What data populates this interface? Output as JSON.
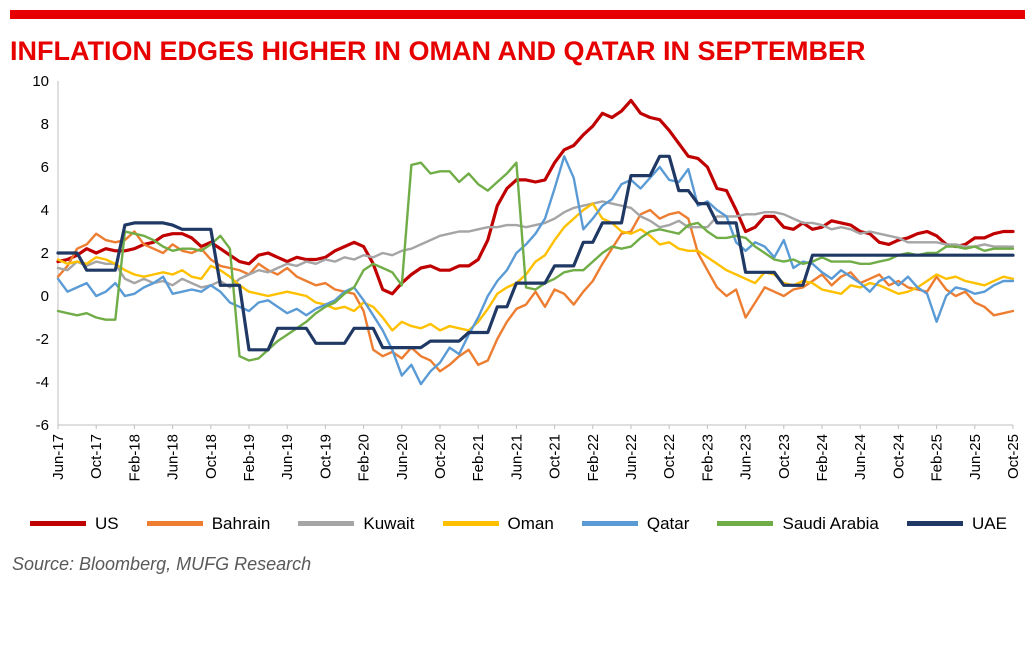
{
  "title": "INFLATION EDGES HIGHER IN OMAN AND QATAR IN SEPTEMBER",
  "source": "Source: Bloomberg, MUFG Research",
  "colors": {
    "accent_red": "#e60000",
    "axis": "#bfbfbf",
    "tick_text": "#000000",
    "source_text": "#595959"
  },
  "chart_data": {
    "type": "line",
    "title": "INFLATION EDGES HIGHER IN OMAN AND QATAR IN SEPTEMBER",
    "ylim": [
      -6,
      10
    ],
    "y_ticks": [
      10,
      8,
      6,
      4,
      2,
      0,
      -2,
      -4,
      -6
    ],
    "grid": false,
    "legend_position": "bottom",
    "tick_every": 4,
    "x_tick_labels": [
      "Jun-17",
      "Oct-17",
      "Feb-18",
      "Jun-18",
      "Oct-18",
      "Feb-19",
      "Jun-19",
      "Oct-19",
      "Feb-20",
      "Jun-20",
      "Oct-20",
      "Feb-21",
      "Jun-21",
      "Oct-21",
      "Feb-22",
      "Jun-22",
      "Oct-22",
      "Feb-23",
      "Jun-23",
      "Oct-23",
      "Feb-24",
      "Jun-24",
      "Oct-24",
      "Feb-25",
      "Jun-25",
      "Oct-25"
    ],
    "series": [
      {
        "name": "US",
        "color": "#c00000",
        "width": 3.2,
        "values": [
          1.6,
          1.7,
          1.9,
          2.2,
          2.0,
          2.2,
          2.1,
          2.1,
          2.2,
          2.4,
          2.5,
          2.8,
          2.9,
          2.9,
          2.7,
          2.3,
          2.5,
          2.2,
          1.9,
          1.6,
          1.5,
          1.9,
          2.0,
          1.8,
          1.6,
          1.8,
          1.7,
          1.7,
          1.8,
          2.1,
          2.3,
          2.5,
          2.3,
          1.5,
          0.3,
          0.1,
          0.6,
          1.0,
          1.3,
          1.4,
          1.2,
          1.2,
          1.4,
          1.4,
          1.7,
          2.6,
          4.2,
          5.0,
          5.4,
          5.4,
          5.3,
          5.4,
          6.2,
          6.8,
          7.0,
          7.5,
          7.9,
          8.5,
          8.3,
          8.6,
          9.1,
          8.5,
          8.3,
          8.2,
          7.7,
          7.1,
          6.5,
          6.4,
          6.0,
          5.0,
          4.9,
          4.0,
          3.0,
          3.2,
          3.7,
          3.7,
          3.2,
          3.1,
          3.4,
          3.1,
          3.2,
          3.5,
          3.4,
          3.3,
          3.0,
          2.9,
          2.5,
          2.4,
          2.6,
          2.7,
          2.9,
          3.0,
          2.8,
          2.4,
          2.3,
          2.4,
          2.7,
          2.7,
          2.9,
          3.0,
          3.0
        ]
      },
      {
        "name": "Bahrain",
        "color": "#ed7d31",
        "width": 2.4,
        "values": [
          0.9,
          1.4,
          2.2,
          2.4,
          2.9,
          2.6,
          2.5,
          2.6,
          3.0,
          2.4,
          2.2,
          2.0,
          2.4,
          2.1,
          2.0,
          2.2,
          1.7,
          1.4,
          1.3,
          1.2,
          1.0,
          1.5,
          1.2,
          1.0,
          1.3,
          0.9,
          0.7,
          0.5,
          0.6,
          0.3,
          0.2,
          0.1,
          -0.7,
          -2.5,
          -2.8,
          -2.6,
          -2.9,
          -2.4,
          -2.8,
          -3.0,
          -3.5,
          -3.2,
          -2.8,
          -2.5,
          -3.2,
          -3.0,
          -2.0,
          -1.2,
          -0.6,
          -0.4,
          0.2,
          -0.5,
          0.3,
          0.1,
          -0.4,
          0.2,
          0.7,
          1.5,
          2.2,
          2.9,
          3.0,
          3.8,
          4.0,
          3.6,
          3.8,
          3.9,
          3.6,
          2.0,
          1.2,
          0.4,
          0.0,
          0.3,
          -1.0,
          -0.3,
          0.4,
          0.2,
          0.0,
          0.3,
          0.4,
          0.7,
          1.0,
          0.5,
          0.9,
          1.1,
          0.6,
          0.8,
          1.0,
          0.5,
          0.7,
          0.4,
          0.3,
          0.2,
          0.9,
          0.3,
          0.0,
          0.2,
          -0.3,
          -0.5,
          -0.9,
          -0.8,
          -0.7
        ]
      },
      {
        "name": "Kuwait",
        "color": "#a5a5a5",
        "width": 2.4,
        "values": [
          1.3,
          1.2,
          1.6,
          1.4,
          1.6,
          1.5,
          1.5,
          0.8,
          0.6,
          0.8,
          0.6,
          0.7,
          0.5,
          0.8,
          0.6,
          0.4,
          0.5,
          0.7,
          0.4,
          0.8,
          1.0,
          1.2,
          1.1,
          1.3,
          1.5,
          1.4,
          1.6,
          1.5,
          1.7,
          1.6,
          1.8,
          1.7,
          1.9,
          1.8,
          2.0,
          1.9,
          2.1,
          2.2,
          2.4,
          2.6,
          2.8,
          2.9,
          3.0,
          3.0,
          3.1,
          3.2,
          3.2,
          3.3,
          3.3,
          3.2,
          3.3,
          3.4,
          3.6,
          3.9,
          4.1,
          4.2,
          4.3,
          4.4,
          4.3,
          4.2,
          4.1,
          3.7,
          3.5,
          3.2,
          3.3,
          3.5,
          3.2,
          3.2,
          3.2,
          3.7,
          3.7,
          3.7,
          3.8,
          3.8,
          3.9,
          3.9,
          3.8,
          3.6,
          3.4,
          3.4,
          3.3,
          3.1,
          3.2,
          3.1,
          2.9,
          3.0,
          2.9,
          2.8,
          2.7,
          2.5,
          2.5,
          2.5,
          2.5,
          2.4,
          2.4,
          2.3,
          2.3,
          2.4,
          2.3,
          2.3,
          2.3
        ]
      },
      {
        "name": "Oman",
        "color": "#ffc000",
        "width": 2.4,
        "values": [
          1.7,
          1.5,
          1.6,
          1.5,
          1.8,
          1.7,
          1.5,
          1.2,
          1.0,
          0.9,
          1.0,
          1.1,
          1.0,
          1.2,
          0.9,
          0.8,
          1.4,
          1.2,
          0.9,
          0.5,
          0.2,
          0.1,
          0.0,
          0.1,
          0.2,
          0.1,
          0.0,
          -0.3,
          -0.4,
          -0.6,
          -0.5,
          -0.7,
          -0.3,
          -0.5,
          -1.0,
          -1.6,
          -1.2,
          -1.4,
          -1.5,
          -1.3,
          -1.6,
          -1.4,
          -1.5,
          -1.6,
          -1.2,
          -0.6,
          0.1,
          0.4,
          0.6,
          1.0,
          1.6,
          1.9,
          2.6,
          3.2,
          3.6,
          4.0,
          4.3,
          3.6,
          3.4,
          3.0,
          2.9,
          3.1,
          2.8,
          2.4,
          2.5,
          2.2,
          2.1,
          2.1,
          1.8,
          1.5,
          1.2,
          1.0,
          0.8,
          0.6,
          1.1,
          1.0,
          0.6,
          0.5,
          0.7,
          0.6,
          0.3,
          0.2,
          0.1,
          0.5,
          0.4,
          0.6,
          0.5,
          0.3,
          0.1,
          0.2,
          0.4,
          0.7,
          1.0,
          0.8,
          0.9,
          0.7,
          0.6,
          0.5,
          0.7,
          0.9,
          0.8
        ]
      },
      {
        "name": "Qatar",
        "color": "#5b9bd5",
        "width": 2.4,
        "values": [
          0.8,
          0.2,
          0.4,
          0.6,
          0.0,
          0.2,
          0.6,
          0.0,
          0.1,
          0.4,
          0.6,
          0.9,
          0.1,
          0.2,
          0.3,
          0.2,
          0.5,
          0.2,
          -0.3,
          -0.5,
          -0.7,
          -0.3,
          -0.2,
          -0.5,
          -0.8,
          -0.6,
          -0.9,
          -0.6,
          -0.4,
          -0.2,
          0.2,
          0.4,
          -0.2,
          -0.9,
          -1.6,
          -2.5,
          -3.7,
          -3.2,
          -4.1,
          -3.5,
          -3.1,
          -2.4,
          -2.7,
          -1.8,
          -1.0,
          0.0,
          0.7,
          1.2,
          2.0,
          2.4,
          2.9,
          3.6,
          5.0,
          6.5,
          5.5,
          3.1,
          3.6,
          4.2,
          4.5,
          5.2,
          5.4,
          5.0,
          5.5,
          6.0,
          5.4,
          5.3,
          5.9,
          4.2,
          4.4,
          4.0,
          3.7,
          2.5,
          2.1,
          2.5,
          2.3,
          1.8,
          2.6,
          1.3,
          1.6,
          1.5,
          1.1,
          0.8,
          1.2,
          0.9,
          0.6,
          0.2,
          0.7,
          0.9,
          0.5,
          0.9,
          0.4,
          0.1,
          -1.2,
          0.0,
          0.4,
          0.3,
          0.1,
          0.2,
          0.5,
          0.7,
          0.7
        ]
      },
      {
        "name": "Saudi Arabia",
        "color": "#70ad47",
        "width": 2.4,
        "values": [
          -0.7,
          -0.8,
          -0.9,
          -0.8,
          -1.0,
          -1.1,
          -1.1,
          3.0,
          2.9,
          2.8,
          2.6,
          2.3,
          2.1,
          2.2,
          2.2,
          2.1,
          2.4,
          2.8,
          2.2,
          -2.8,
          -3.0,
          -2.9,
          -2.5,
          -2.1,
          -1.8,
          -1.5,
          -1.2,
          -0.8,
          -0.5,
          -0.3,
          0.1,
          0.4,
          1.2,
          1.5,
          1.3,
          1.1,
          0.5,
          6.1,
          6.2,
          5.7,
          5.8,
          5.8,
          5.3,
          5.7,
          5.2,
          4.9,
          5.3,
          5.7,
          6.2,
          0.4,
          0.3,
          0.6,
          0.8,
          1.1,
          1.2,
          1.2,
          1.6,
          2.0,
          2.3,
          2.2,
          2.3,
          2.7,
          3.0,
          3.1,
          3.0,
          2.9,
          3.3,
          3.4,
          3.0,
          2.7,
          2.7,
          2.8,
          2.7,
          2.3,
          2.0,
          1.7,
          1.6,
          1.7,
          1.5,
          1.6,
          1.8,
          1.6,
          1.6,
          1.6,
          1.5,
          1.5,
          1.6,
          1.7,
          1.9,
          2.0,
          1.9,
          2.0,
          2.0,
          2.3,
          2.3,
          2.2,
          2.3,
          2.1,
          2.2,
          2.2,
          2.2
        ]
      },
      {
        "name": "UAE",
        "color": "#1f3864",
        "width": 3.2,
        "values": [
          2.0,
          2.0,
          2.0,
          1.2,
          1.2,
          1.2,
          1.2,
          3.3,
          3.4,
          3.4,
          3.4,
          3.4,
          3.3,
          3.1,
          3.1,
          3.1,
          3.1,
          0.5,
          0.5,
          0.5,
          -2.5,
          -2.5,
          -2.5,
          -1.5,
          -1.5,
          -1.5,
          -1.5,
          -2.2,
          -2.2,
          -2.2,
          -2.2,
          -1.5,
          -1.5,
          -1.5,
          -2.4,
          -2.4,
          -2.4,
          -2.4,
          -2.4,
          -2.1,
          -2.1,
          -2.1,
          -2.1,
          -1.7,
          -1.7,
          -1.7,
          -0.5,
          -0.5,
          0.6,
          0.6,
          0.6,
          0.6,
          1.4,
          1.4,
          1.4,
          2.5,
          2.5,
          3.4,
          3.4,
          3.4,
          5.6,
          5.6,
          5.6,
          6.5,
          6.5,
          4.9,
          4.9,
          4.3,
          4.3,
          3.4,
          3.4,
          3.4,
          1.1,
          1.1,
          1.1,
          1.1,
          0.5,
          0.5,
          0.5,
          1.9,
          1.9,
          1.9,
          1.9,
          1.9,
          1.9,
          1.9,
          1.9,
          1.9,
          1.9,
          1.9,
          1.9,
          1.9,
          1.9,
          1.9,
          1.9,
          1.9,
          1.9,
          1.9,
          1.9,
          1.9,
          1.9
        ]
      }
    ]
  }
}
